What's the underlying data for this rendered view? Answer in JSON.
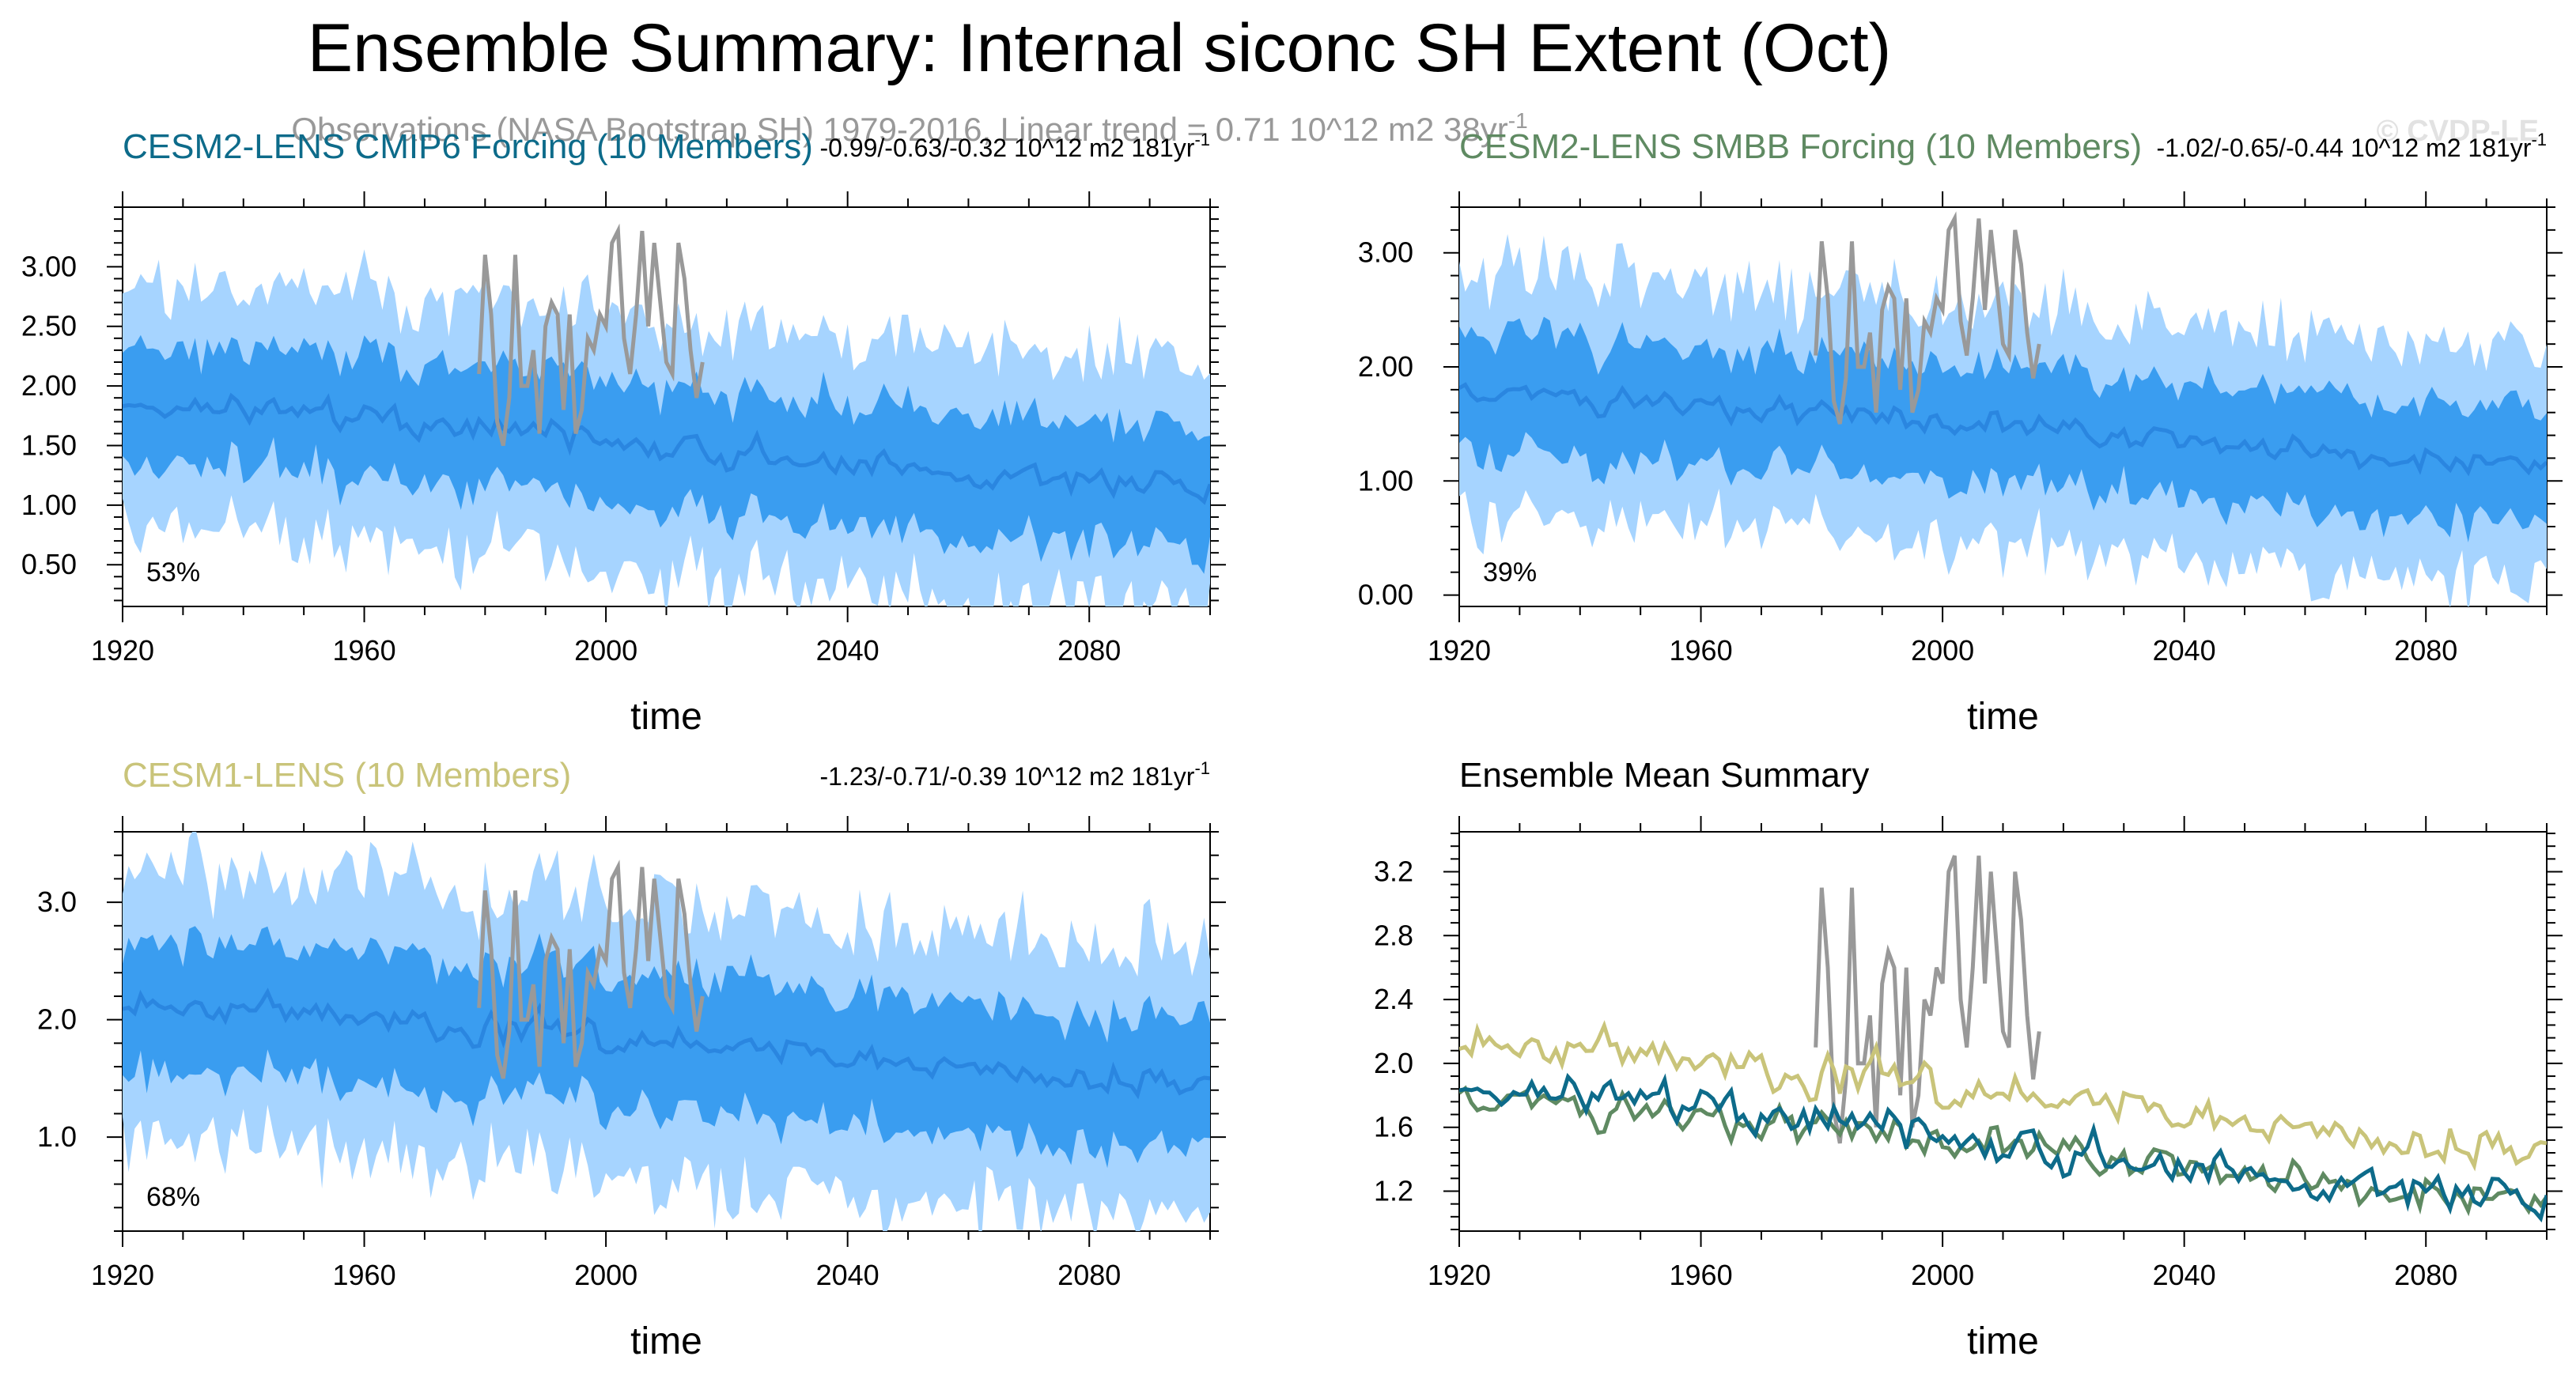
{
  "title": "Ensemble Summary: Internal siconc SH Extent (Oct)",
  "observations": {
    "label": "Observations (NASA Bootstrap SH) 1979-2016, Linear trend = 0.71 10^12 m2 38yr",
    "superscript": "-1",
    "color": "#999999",
    "years": [
      1979,
      1980,
      1981,
      1982,
      1983,
      1984,
      1985,
      1986,
      1987,
      1988,
      1989,
      1990,
      1991,
      1992,
      1993,
      1994,
      1995,
      1996,
      1997,
      1998,
      1999,
      2000,
      2001,
      2002,
      2003,
      2004,
      2005,
      2006,
      2007,
      2008,
      2009,
      2010,
      2011,
      2012,
      2013,
      2014,
      2015,
      2016
    ],
    "values": [
      2.1,
      3.1,
      2.6,
      1.7,
      1.5,
      1.9,
      3.1,
      2.0,
      2.0,
      2.3,
      1.6,
      2.5,
      2.7,
      2.6,
      1.8,
      2.6,
      1.6,
      1.8,
      2.4,
      2.3,
      2.6,
      2.5,
      3.2,
      3.3,
      2.4,
      2.1,
      2.6,
      3.3,
      2.5,
      3.2,
      2.7,
      2.2,
      2.1,
      3.2,
      2.9,
      2.3,
      1.9,
      2.2
    ]
  },
  "watermark": "© CVDP-LE",
  "colors": {
    "band_outer": "#a6d4ff",
    "band_inner": "#3a9df0",
    "mean_line": "#2a86e0",
    "cesm2_cmip6": "#0d6b8a",
    "cesm2_smbb": "#5f8a62",
    "cesm1": "#c9c47a"
  },
  "panels": [
    {
      "id": "cesm2-cmip6",
      "title": "CESM2-LENS CMIP6 Forcing (10 Members)",
      "title_color": "#0d6b8a",
      "trend": "-0.99/-0.63/-0.32 10^12 m2 181yr",
      "trend_sup": "-1",
      "percent": "53%",
      "xlabel": "time",
      "xlim": [
        1920,
        2100
      ],
      "ylim": [
        0.15,
        3.5
      ],
      "xticks": [
        1920,
        1960,
        2000,
        2040,
        2080
      ],
      "yticks": [
        "0.50",
        "1.00",
        "1.50",
        "2.00",
        "2.50",
        "3.00"
      ],
      "base": 1.9,
      "slope": -0.8,
      "amp": 0.3,
      "spread": 0.9,
      "seed": 11
    },
    {
      "id": "cesm2-smbb",
      "title": "CESM2-LENS SMBB Forcing (10 Members)",
      "title_color": "#5f8a62",
      "trend": "-1.02/-0.65/-0.44 10^12 m2 181yr",
      "trend_sup": "-1",
      "percent": "39%",
      "xlabel": "time",
      "xlim": [
        1920,
        2100
      ],
      "ylim": [
        -0.1,
        3.4
      ],
      "xticks": [
        1920,
        1960,
        2000,
        2040,
        2080
      ],
      "yticks": [
        "0.00",
        "1.00",
        "2.00",
        "3.00"
      ],
      "base": 1.85,
      "slope": -0.75,
      "amp": 0.3,
      "spread": 0.9,
      "seed": 23
    },
    {
      "id": "cesm1",
      "title": "CESM1-LENS (10 Members)",
      "title_color": "#c9c47a",
      "trend": "-1.23/-0.71/-0.39 10^12 m2 181yr",
      "trend_sup": "-1",
      "percent": "68%",
      "xlabel": "time",
      "xlim": [
        1920,
        2100
      ],
      "ylim": [
        0.2,
        3.6
      ],
      "xticks": [
        1920,
        1960,
        2000,
        2040,
        2080
      ],
      "yticks": [
        "1.0",
        "2.0",
        "3.0"
      ],
      "base": 2.15,
      "slope": -0.7,
      "amp": 0.35,
      "spread": 1.0,
      "seed": 37
    },
    {
      "id": "ensemble-mean",
      "title": "Ensemble Mean Summary",
      "title_color": "#000000",
      "xlabel": "time",
      "xlim": [
        1920,
        2100
      ],
      "ylim": [
        0.95,
        3.45
      ],
      "xticks": [
        1920,
        1960,
        2000,
        2040,
        2080
      ],
      "yticks": [
        "1.2",
        "1.6",
        "2.0",
        "2.4",
        "2.8",
        "3.2"
      ]
    }
  ]
}
